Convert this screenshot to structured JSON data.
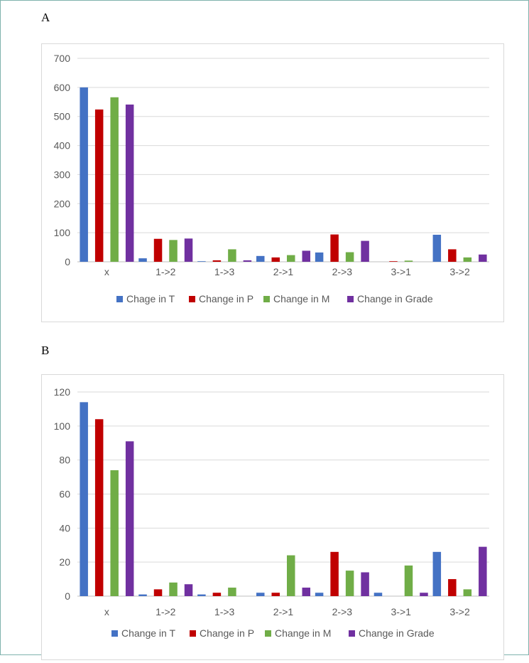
{
  "figure": {
    "panels": [
      {
        "label": "A"
      },
      {
        "label": "B"
      }
    ]
  },
  "chart_data": [
    {
      "type": "bar",
      "panel": "A",
      "title": "",
      "xlabel": "",
      "ylabel": "",
      "categories": [
        "x",
        "1->2",
        "1->3",
        "2->1",
        "2->3",
        "3->1",
        "3->2"
      ],
      "ylim": [
        0,
        700
      ],
      "yticks": [
        0,
        100,
        200,
        300,
        400,
        500,
        600,
        700
      ],
      "grid": true,
      "legend_position": "bottom",
      "series": [
        {
          "name": "Chage in T",
          "color": "#4472c4",
          "values": [
            600,
            12,
            2,
            20,
            32,
            0,
            93
          ]
        },
        {
          "name": "Change in P",
          "color": "#c00000",
          "values": [
            524,
            79,
            5,
            15,
            94,
            2,
            43
          ]
        },
        {
          "name": "Change in M",
          "color": "#70ad47",
          "values": [
            566,
            75,
            43,
            23,
            33,
            4,
            15
          ]
        },
        {
          "name": "Change in Grade",
          "color": "#7030a0",
          "values": [
            541,
            80,
            5,
            38,
            72,
            0,
            25
          ]
        }
      ]
    },
    {
      "type": "bar",
      "panel": "B",
      "title": "",
      "xlabel": "",
      "ylabel": "",
      "categories": [
        "x",
        "1->2",
        "1->3",
        "2->1",
        "2->3",
        "3->1",
        "3->2"
      ],
      "ylim": [
        0,
        120
      ],
      "yticks": [
        0,
        20,
        40,
        60,
        80,
        100,
        120
      ],
      "grid": true,
      "legend_position": "bottom",
      "series": [
        {
          "name": "Change in T",
          "color": "#4472c4",
          "values": [
            114,
            1,
            1,
            2,
            2,
            2,
            26
          ]
        },
        {
          "name": "Change in P",
          "color": "#c00000",
          "values": [
            104,
            4,
            2,
            2,
            26,
            0,
            10
          ]
        },
        {
          "name": "Change in M",
          "color": "#70ad47",
          "values": [
            74,
            8,
            5,
            24,
            15,
            18,
            4
          ]
        },
        {
          "name": "Change in Grade",
          "color": "#7030a0",
          "values": [
            91,
            7,
            0,
            5,
            14,
            2,
            29
          ]
        }
      ]
    }
  ]
}
